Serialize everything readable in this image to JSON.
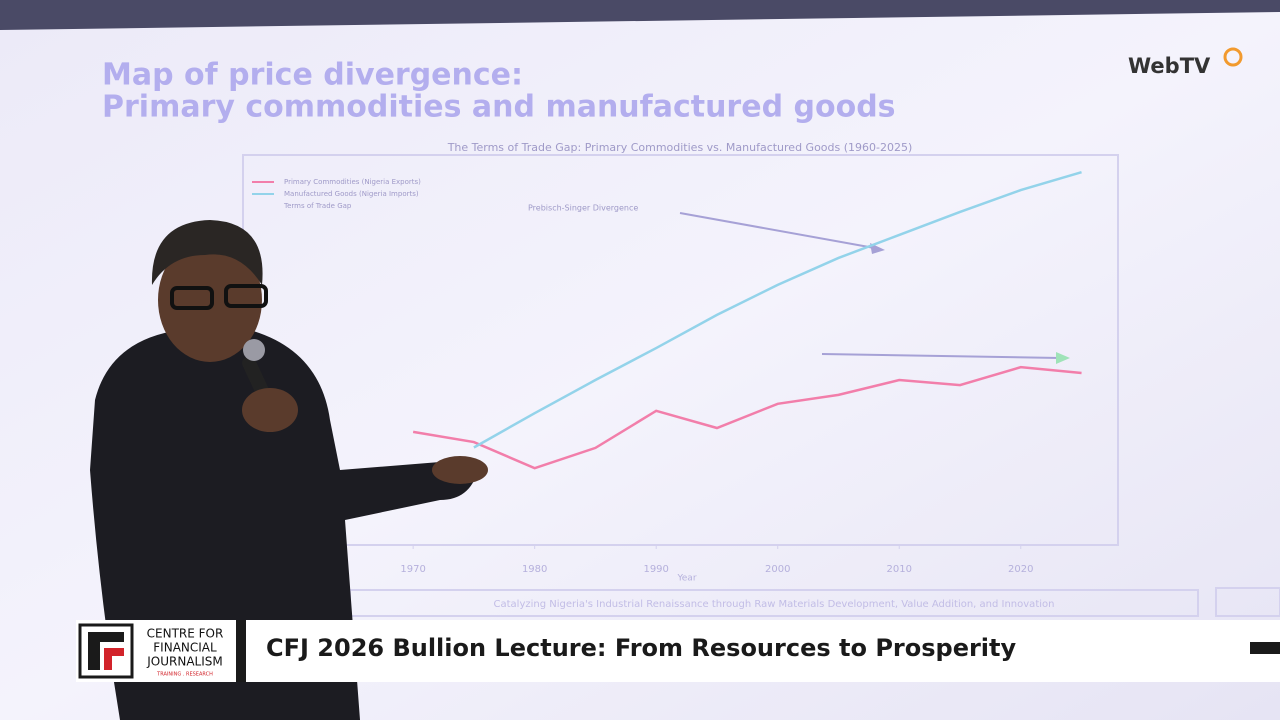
{
  "slide": {
    "title_lines": [
      "Map of price divergence:",
      "Primary commodities and manufactured goods"
    ],
    "footer": "Catalyzing Nigeria's Industrial Renaissance through Raw Materials Development, Value Addition, and Innovation"
  },
  "chart_data": {
    "type": "line",
    "title": "The Terms of Trade Gap: Primary Commodities vs. Manufactured Goods (1960-2025)",
    "x_label": "Year",
    "x": [
      1970,
      1975,
      1980,
      1985,
      1990,
      1995,
      2000,
      2005,
      2010,
      2015,
      2020,
      2025
    ],
    "series": [
      {
        "name": "Primary Commodities (Nigeria Exports)",
        "color": "#f27eaa",
        "values": [
          29,
          26.4,
          19.7,
          24.9,
          34.4,
          30,
          36.2,
          38.5,
          42.3,
          41,
          45.6,
          44.1
        ]
      },
      {
        "name": "Manufactured Goods (Nigeria Imports)",
        "color": "#93d3ea",
        "values": [
          null,
          25,
          33.8,
          42.3,
          50.5,
          59,
          66.7,
          73.6,
          79.5,
          85.4,
          91,
          95.6
        ]
      }
    ],
    "legend_extra": "Terms of Trade Gap",
    "annotation": "Prebisch-Singer Divergence",
    "xlim": [
      1956,
      2028
    ],
    "xticks": [
      1970,
      1980,
      1990,
      2000,
      2010,
      2020
    ],
    "ylim": [
      0,
      100
    ]
  },
  "lower_third": {
    "headline": "CFJ 2026 Bullion Lecture: From Resources to Prosperity",
    "logo_lines": [
      "CENTRE FOR",
      "FINANCIAL",
      "JOURNALISM"
    ],
    "logo_tagline": "TRAINING . RESEARCH"
  },
  "watermark": "WebTV"
}
